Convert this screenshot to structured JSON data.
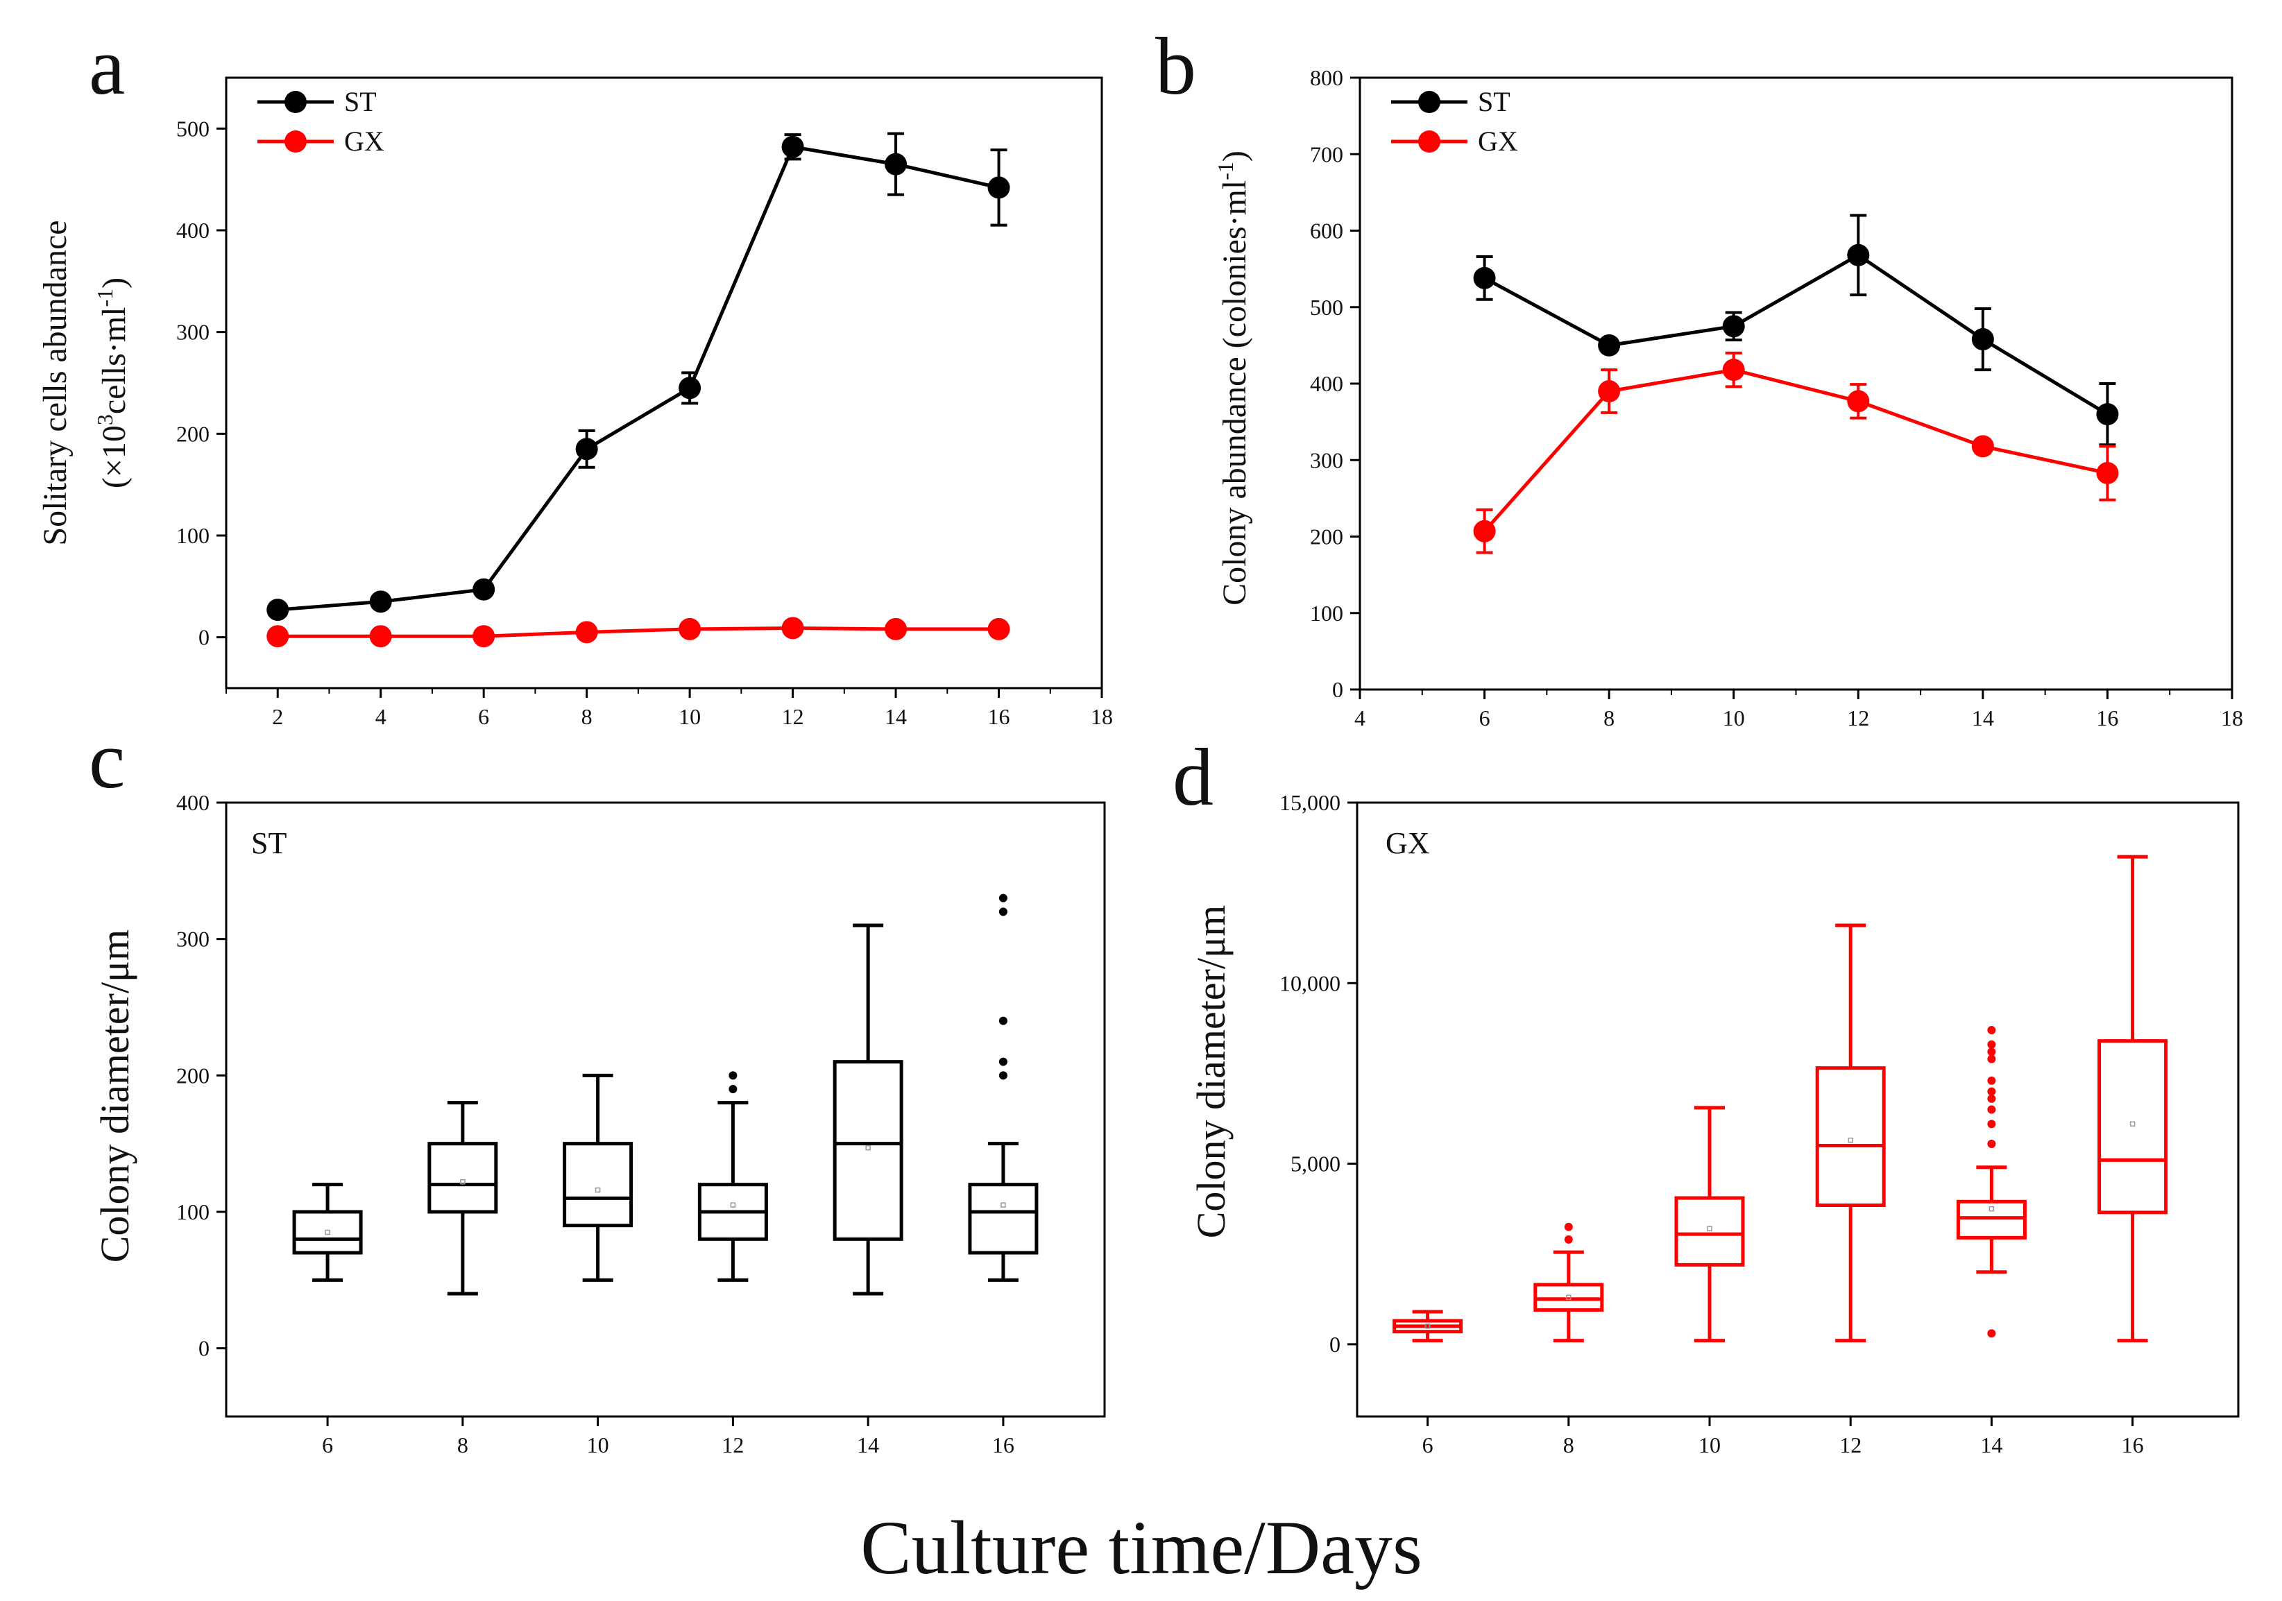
{
  "figure": {
    "common_xlabel": "Culture time/Days"
  },
  "colors": {
    "ST": "#000000",
    "GX": "#ff0000"
  },
  "chart_data": [
    {
      "id": "a",
      "panel_letter": "a",
      "type": "line",
      "xlabel": "",
      "ylabel_line1": "Solitary cells abundance",
      "ylabel_line2_prefix": "(×10",
      "ylabel_line2_sup1": "3",
      "ylabel_line2_mid": "cells·ml",
      "ylabel_line2_sup2": "-1",
      "ylabel_line2_suffix": ")",
      "xlim": [
        1,
        18
      ],
      "ylim": [
        -50,
        550
      ],
      "xticks": [
        2,
        4,
        6,
        8,
        10,
        12,
        14,
        16,
        18
      ],
      "yticks": [
        0,
        100,
        200,
        300,
        400,
        500
      ],
      "legend": {
        "position": "top-left"
      },
      "series": [
        {
          "name": "ST",
          "x": [
            2,
            4,
            6,
            8,
            10,
            12,
            14,
            16
          ],
          "y": [
            27,
            35,
            47,
            185,
            245,
            482,
            465,
            442
          ],
          "err": [
            5,
            5,
            6,
            18,
            15,
            12,
            30,
            37
          ]
        },
        {
          "name": "GX",
          "x": [
            2,
            4,
            6,
            8,
            10,
            12,
            14,
            16
          ],
          "y": [
            1,
            1,
            1,
            5,
            8,
            9,
            8,
            8
          ],
          "err": [
            1,
            1,
            1,
            2,
            2,
            2,
            2,
            2
          ]
        }
      ]
    },
    {
      "id": "b",
      "panel_letter": "b",
      "type": "line",
      "xlabel": "",
      "ylabel_line1": "Colony abundance (colonies·ml",
      "ylabel_line1_sup": "-1",
      "ylabel_line1_suffix": ")",
      "xlim": [
        4,
        18
      ],
      "ylim": [
        0,
        800
      ],
      "xticks": [
        4,
        6,
        8,
        10,
        12,
        14,
        16,
        18
      ],
      "yticks": [
        0,
        100,
        200,
        300,
        400,
        500,
        600,
        700,
        800
      ],
      "legend": {
        "position": "top-left"
      },
      "series": [
        {
          "name": "ST",
          "x": [
            6,
            8,
            10,
            12,
            14,
            16
          ],
          "y": [
            538,
            450,
            475,
            568,
            458,
            360
          ],
          "err": [
            28,
            8,
            18,
            52,
            40,
            40
          ]
        },
        {
          "name": "GX",
          "x": [
            6,
            8,
            10,
            12,
            14,
            16
          ],
          "y": [
            207,
            390,
            418,
            377,
            318,
            283
          ],
          "err": [
            28,
            28,
            22,
            22,
            8,
            35
          ]
        }
      ]
    },
    {
      "id": "c",
      "panel_letter": "c",
      "type": "box",
      "inset_label": "ST",
      "ylabel": "Colony diameter/μm",
      "xlim": [
        4.5,
        17.5
      ],
      "ylim": [
        -50,
        400
      ],
      "xticks": [
        6,
        8,
        10,
        12,
        14,
        16
      ],
      "yticks": [
        0,
        100,
        200,
        300,
        400
      ],
      "ytick_labels": [
        "0",
        "100",
        "200",
        "300",
        "400"
      ],
      "series_name": "ST",
      "boxes": [
        {
          "x": 6,
          "min": 50,
          "q1": 70,
          "median": 80,
          "q3": 100,
          "max": 120,
          "mean": 85,
          "outliers": []
        },
        {
          "x": 8,
          "min": 40,
          "q1": 100,
          "median": 120,
          "q3": 150,
          "max": 180,
          "mean": 122,
          "outliers": []
        },
        {
          "x": 10,
          "min": 50,
          "q1": 90,
          "median": 110,
          "q3": 150,
          "max": 200,
          "mean": 116,
          "outliers": []
        },
        {
          "x": 12,
          "min": 50,
          "q1": 80,
          "median": 100,
          "q3": 120,
          "max": 180,
          "mean": 105,
          "outliers": [
            190,
            200
          ]
        },
        {
          "x": 14,
          "min": 40,
          "q1": 80,
          "median": 150,
          "q3": 210,
          "max": 310,
          "mean": 147,
          "outliers": []
        },
        {
          "x": 16,
          "min": 50,
          "q1": 70,
          "median": 100,
          "q3": 120,
          "max": 150,
          "mean": 105,
          "outliers": [
            200,
            210,
            240,
            320,
            330
          ]
        }
      ]
    },
    {
      "id": "d",
      "panel_letter": "d",
      "type": "box",
      "inset_label": "GX",
      "ylabel": "Colony diameter/μm",
      "xlim": [
        5,
        17.5
      ],
      "ylim": [
        -2000,
        15000
      ],
      "xticks": [
        6,
        8,
        10,
        12,
        14,
        16
      ],
      "yticks": [
        0,
        5000,
        10000,
        15000
      ],
      "ytick_labels": [
        "0",
        "5,000",
        "10,000",
        "15,000"
      ],
      "series_name": "GX",
      "boxes": [
        {
          "x": 6,
          "min": 100,
          "q1": 350,
          "median": 500,
          "q3": 650,
          "max": 900,
          "mean": 500,
          "outliers": []
        },
        {
          "x": 8,
          "min": 100,
          "q1": 950,
          "median": 1250,
          "q3": 1650,
          "max": 2550,
          "mean": 1300,
          "outliers": [
            2900,
            3250
          ]
        },
        {
          "x": 10,
          "min": 100,
          "q1": 2200,
          "median": 3050,
          "q3": 4050,
          "max": 6550,
          "mean": 3200,
          "outliers": []
        },
        {
          "x": 12,
          "min": 100,
          "q1": 3850,
          "median": 5500,
          "q3": 7650,
          "max": 11600,
          "mean": 5650,
          "outliers": []
        },
        {
          "x": 14,
          "min": 2000,
          "q1": 2950,
          "median": 3500,
          "q3": 3950,
          "max": 4900,
          "mean": 3750,
          "outliers": [
            300,
            5550,
            6100,
            6500,
            6800,
            7000,
            7300,
            7900,
            8100,
            8300,
            8700
          ]
        },
        {
          "x": 16,
          "min": 100,
          "q1": 3650,
          "median": 5100,
          "q3": 8400,
          "max": 13500,
          "mean": 6100,
          "outliers": []
        }
      ]
    }
  ]
}
